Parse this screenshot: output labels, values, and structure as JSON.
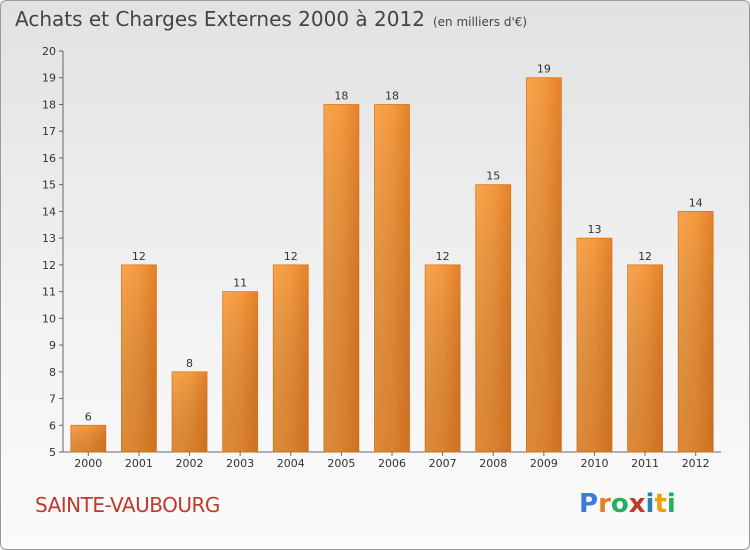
{
  "header": {
    "title": "Achats et Charges Externes 2000 à 2012",
    "subtitle": "(en milliers d'€)"
  },
  "footer": {
    "town": "SAINTE-VAUBOURG",
    "logo": [
      "P",
      "r",
      "o",
      "x",
      "i",
      "t",
      "i"
    ],
    "logo_colors": [
      "#3a7bd5",
      "#e67e22",
      "#27ae60",
      "#c0392b",
      "#2980b9",
      "#f39c12",
      "#27ae60"
    ]
  },
  "chart_data": {
    "type": "bar",
    "title": "Achats et Charges Externes 2000 à 2012",
    "subtitle": "(en milliers d'€)",
    "categories": [
      "2000",
      "2001",
      "2002",
      "2003",
      "2004",
      "2005",
      "2006",
      "2007",
      "2008",
      "2009",
      "2010",
      "2011",
      "2012"
    ],
    "values": [
      6,
      12,
      8,
      11,
      12,
      18,
      18,
      12,
      15,
      19,
      13,
      12,
      14
    ],
    "ylim": [
      5,
      20
    ],
    "yticks": [
      5,
      6,
      7,
      8,
      9,
      10,
      11,
      12,
      13,
      14,
      15,
      16,
      17,
      18,
      19,
      20
    ],
    "grid": false,
    "bar_color": "#f39c42",
    "bar_color_dark": "#d9781f"
  }
}
